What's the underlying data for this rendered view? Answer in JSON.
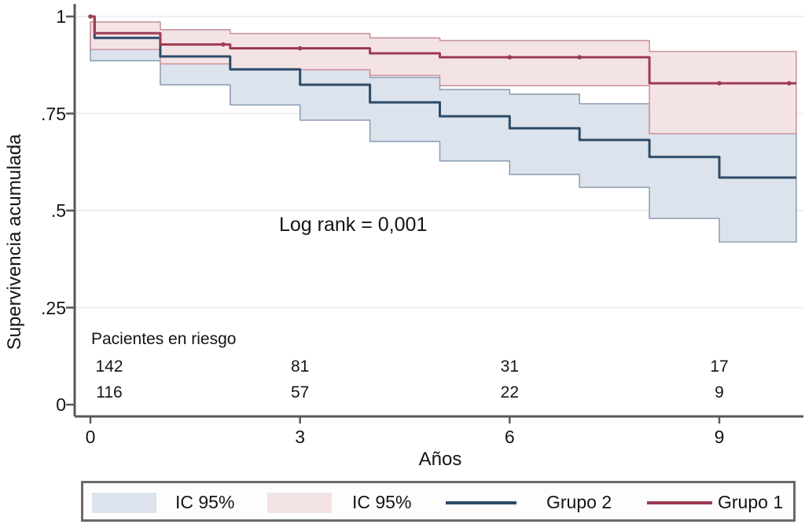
{
  "colors": {
    "grid": "#efedf0",
    "axis": "#58585a",
    "text": "#141414",
    "group2_line": "#2d4b69",
    "group2_band_fill": "#dce3ec",
    "group2_band_edge": "#90a0b6",
    "group1_line": "#9c3c52",
    "group1_band_fill": "#f4e3e5",
    "group1_band_edge": "#c9959f",
    "legend_border": "#6a6a6a"
  },
  "chart_data": {
    "type": "line",
    "subtype": "kaplan-meier-step",
    "title": "",
    "ylabel": "Supervivencia acumulada",
    "xlabel": "Años",
    "annotation": "Log rank = 0,001",
    "xlim": [
      0,
      10.1
    ],
    "ylim": [
      0,
      1
    ],
    "grid": "horizontal",
    "xticks": [
      {
        "label": "0",
        "value": 0
      },
      {
        "label": "3",
        "value": 3
      },
      {
        "label": "6",
        "value": 6
      },
      {
        "label": "9",
        "value": 9
      }
    ],
    "yticks": [
      {
        "label": "1",
        "value": 1
      },
      {
        "label": ".75",
        "value": 0.75
      },
      {
        "label": ".5",
        "value": 0.5
      },
      {
        "label": ".25",
        "value": 0.25
      },
      {
        "label": "0",
        "value": 0
      }
    ],
    "series": [
      {
        "name": "Grupo 2",
        "color": "#2d4b69",
        "band_fill": "#dce3ec",
        "band_edge": "#90a0b6",
        "steps": [
          [
            0,
            1.0
          ],
          [
            0.06,
            0.945
          ],
          [
            1,
            0.897
          ],
          [
            2,
            0.864
          ],
          [
            3,
            0.824
          ],
          [
            4,
            0.779
          ],
          [
            5,
            0.743
          ],
          [
            6,
            0.712
          ],
          [
            7,
            0.682
          ],
          [
            8,
            0.638
          ],
          [
            9,
            0.585
          ],
          [
            10.1,
            0.585
          ]
        ],
        "ci": [
          [
            0,
            0.972,
            0.886
          ],
          [
            1,
            0.937,
            0.824
          ],
          [
            2,
            0.912,
            0.772
          ],
          [
            3,
            0.878,
            0.733
          ],
          [
            4,
            0.843,
            0.678
          ],
          [
            5,
            0.812,
            0.628
          ],
          [
            6,
            0.8,
            0.593
          ],
          [
            7,
            0.775,
            0.56
          ],
          [
            8,
            0.71,
            0.48
          ],
          [
            9,
            0.698,
            0.419
          ],
          [
            10.1,
            0.698,
            0.419
          ]
        ],
        "censors": []
      },
      {
        "name": "Grupo 1",
        "color": "#9c3c52",
        "band_fill": "#f4e3e5",
        "band_edge": "#c9959f",
        "steps": [
          [
            0,
            1.0
          ],
          [
            0.06,
            0.957
          ],
          [
            1,
            0.928
          ],
          [
            2,
            0.918
          ],
          [
            4,
            0.905
          ],
          [
            5,
            0.895
          ],
          [
            8,
            0.828
          ],
          [
            10.1,
            0.828
          ]
        ],
        "ci": [
          [
            0,
            0.986,
            0.915
          ],
          [
            1,
            0.966,
            0.878
          ],
          [
            2,
            0.956,
            0.863
          ],
          [
            4,
            0.945,
            0.848
          ],
          [
            5,
            0.938,
            0.822
          ],
          [
            8,
            0.91,
            0.698
          ],
          [
            10.1,
            0.91,
            0.698
          ]
        ],
        "censors": [
          [
            0,
            1.0
          ],
          [
            1.9,
            0.928
          ],
          [
            3,
            0.918
          ],
          [
            6,
            0.895
          ],
          [
            7,
            0.895
          ],
          [
            9,
            0.828
          ],
          [
            10,
            0.828
          ]
        ]
      }
    ],
    "risk_table": {
      "title": "Pacientes en riesgo",
      "times": [
        0,
        3,
        6,
        9
      ],
      "rows": [
        [
          "142",
          "81",
          "31",
          "17"
        ],
        [
          "116",
          "57",
          "22",
          "9"
        ]
      ]
    },
    "legend": [
      {
        "label": "IC 95%",
        "type": "band",
        "color": "#dce3ec"
      },
      {
        "label": "IC 95%",
        "type": "band",
        "color": "#f4e3e5"
      },
      {
        "label": "Grupo 2",
        "type": "line",
        "color": "#2d4b69"
      },
      {
        "label": "Grupo 1",
        "type": "line",
        "color": "#9c3c52"
      }
    ]
  }
}
